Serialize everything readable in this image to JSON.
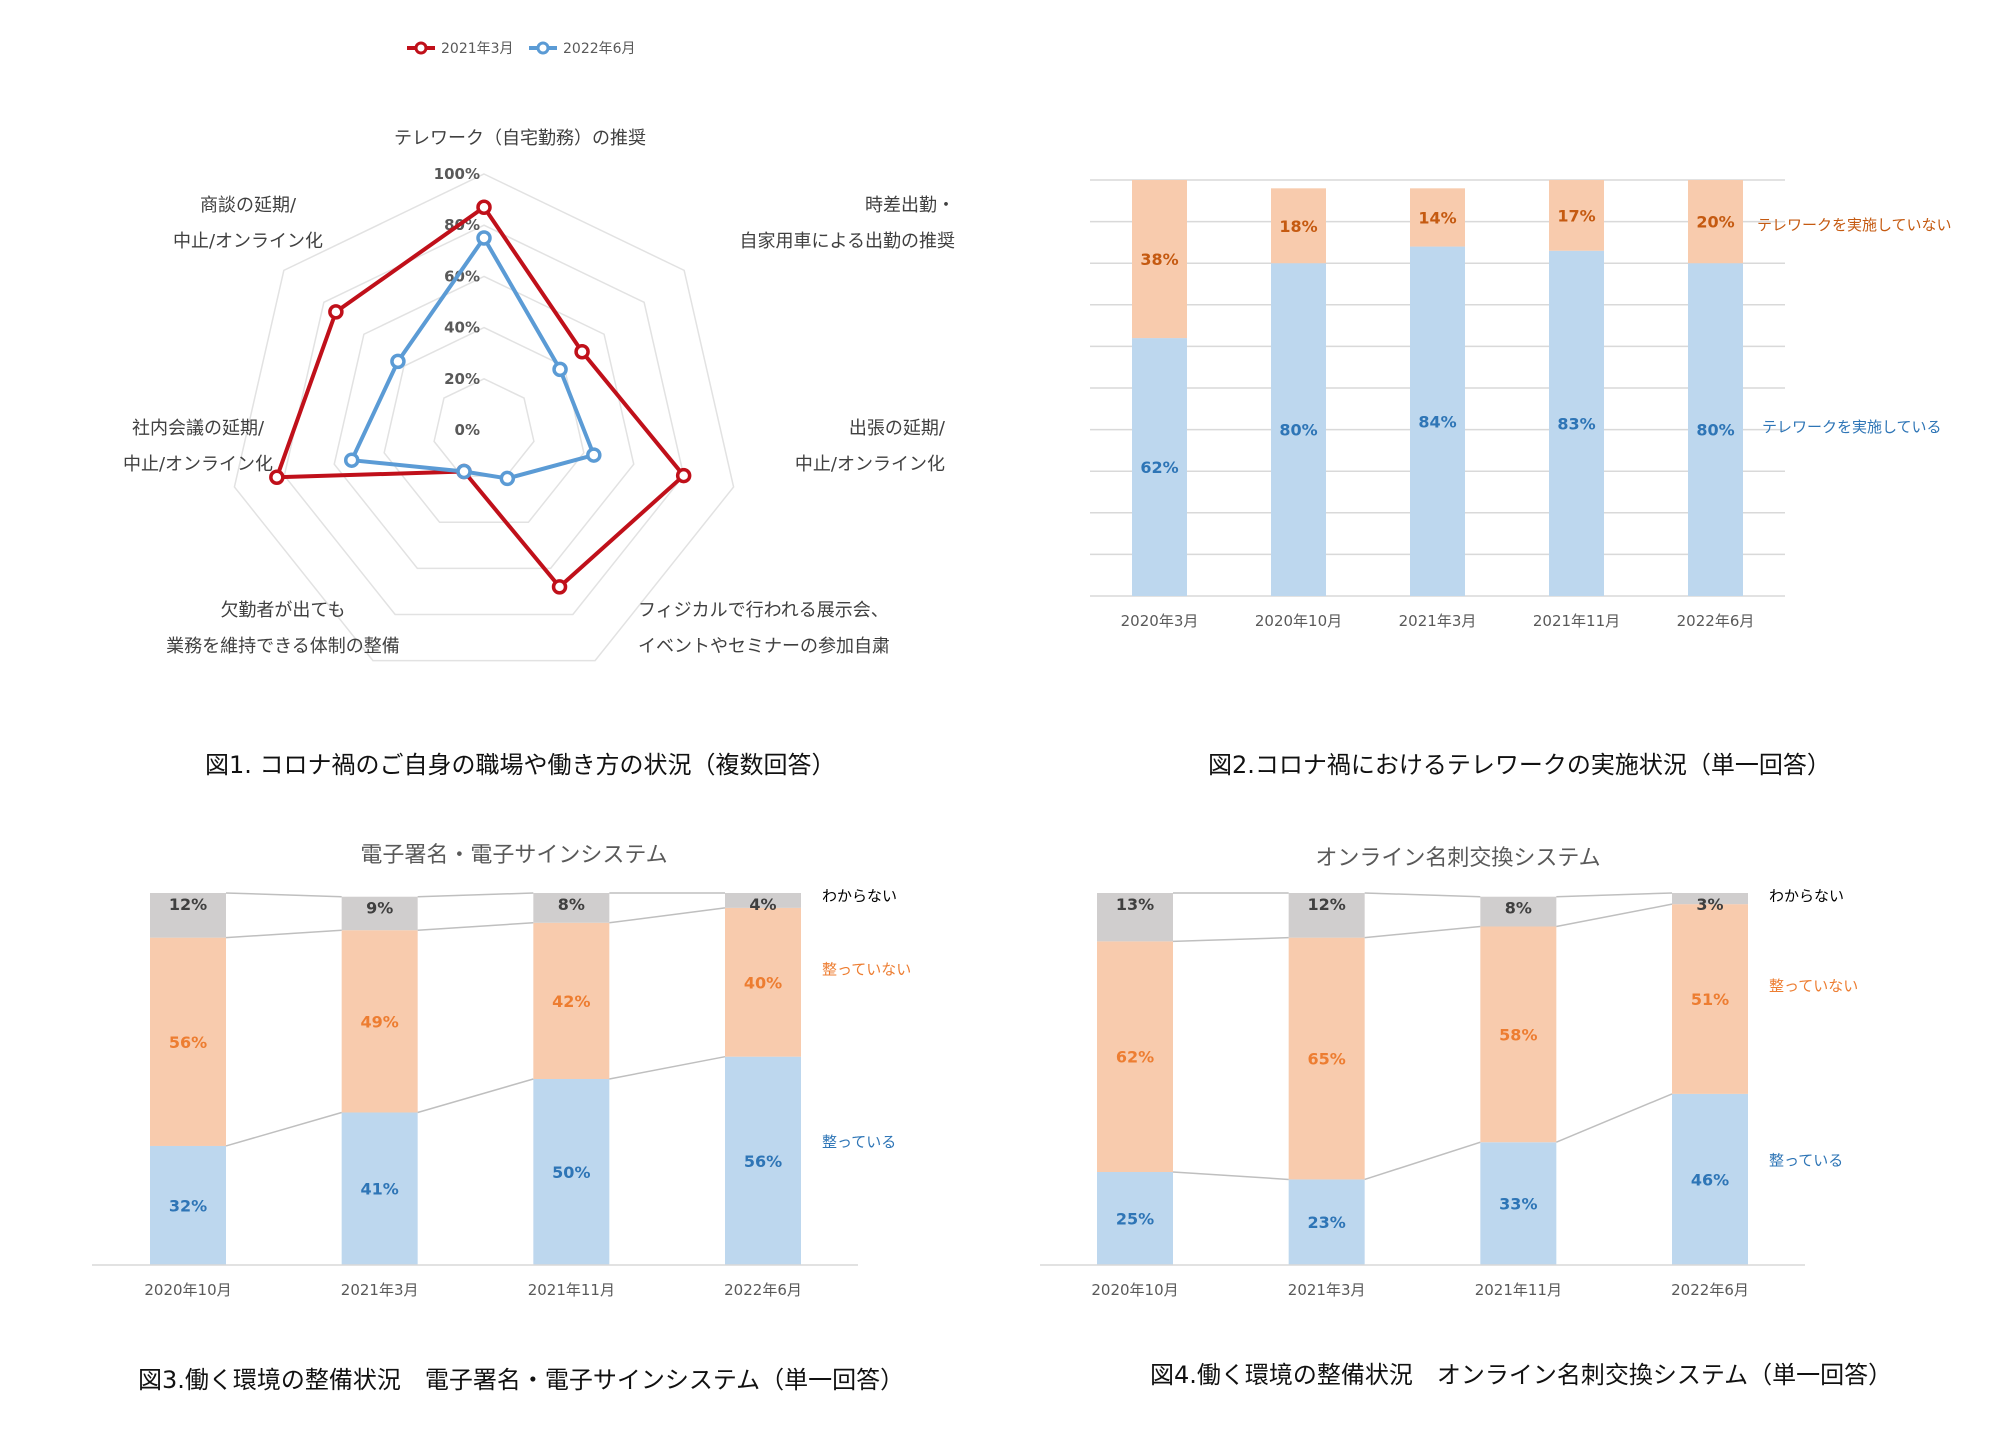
{
  "colors": {
    "red": "#c0101a",
    "blue": "#5b9bd5",
    "bar_blue": "#bdd7ee",
    "bar_orange": "#f8cbad",
    "bar_gray": "#d0cece",
    "text_blue": "#2e75b6",
    "text_orange": "#c55a11",
    "text_orange2": "#ed7d31",
    "grid": "#d9d9d9"
  },
  "captions": {
    "fig1": "図1. コロナ禍のご自身の職場や働き方の状況（複数回答）",
    "fig2": "図2.コロナ禍におけるテレワークの実施状況（単一回答）",
    "fig3": "図3.働く環境の整備状況　電子署名・電子サインシステム（単一回答）",
    "fig4": "図4.働く環境の整備状況　オンライン名刺交換システム（単一回答）"
  },
  "chart_data": [
    {
      "id": "fig1",
      "type": "radar",
      "title": "",
      "legend_position": "top-left",
      "axis_ticks": [
        "0%",
        "20%",
        "40%",
        "60%",
        "80%",
        "100%"
      ],
      "axis_range": [
        0,
        100
      ],
      "axes": [
        {
          "lines": [
            "テレワーク（自宅勤務）の推奨"
          ]
        },
        {
          "lines": [
            "時差出勤・",
            "自家用車による出勤の推奨"
          ]
        },
        {
          "lines": [
            "出張の延期/",
            "中止/オンライン化"
          ]
        },
        {
          "lines": [
            "フィジカルで行われる展示会、",
            "イベントやセミナーの参加自粛"
          ]
        },
        {
          "lines": [
            "欠勤者が出ても",
            "業務を維持できる体制の整備"
          ]
        },
        {
          "lines": [
            "社内会議の延期/",
            "中止/オンライン化"
          ]
        },
        {
          "lines": [
            "商談の延期/",
            "中止/オンライン化"
          ]
        }
      ],
      "series": [
        {
          "name": "2021年3月",
          "color": "#c0101a",
          "values": [
            87,
            49,
            80,
            68,
            18,
            83,
            74
          ]
        },
        {
          "name": "2022年6月",
          "color": "#5b9bd5",
          "values": [
            75,
            38,
            44,
            21,
            18,
            53,
            43
          ]
        }
      ]
    },
    {
      "id": "fig2",
      "type": "stacked_bar",
      "title": "",
      "categories": [
        "2020年3月",
        "2020年10月",
        "2021年3月",
        "2021年11月",
        "2022年6月"
      ],
      "ylim": [
        0,
        100
      ],
      "grid": true,
      "series": [
        {
          "name": "テレワークを実施している",
          "values": [
            62,
            80,
            84,
            83,
            80
          ],
          "labels": [
            "62%",
            "80%",
            "84%",
            "83%",
            "80%"
          ],
          "fill": "#bdd7ee",
          "text": "#2e75b6"
        },
        {
          "name": "テレワークを実施していない",
          "values": [
            38,
            18,
            14,
            17,
            20
          ],
          "labels": [
            "38%",
            "18%",
            "14%",
            "17%",
            "20%"
          ],
          "fill": "#f8cbad",
          "text": "#c55a11"
        }
      ]
    },
    {
      "id": "fig3",
      "type": "stacked_bar",
      "title": "電子署名・電子サインシステム",
      "categories": [
        "2020年10月",
        "2021年3月",
        "2021年11月",
        "2022年6月"
      ],
      "ylim": [
        0,
        100
      ],
      "grid": false,
      "series": [
        {
          "name": "整っている",
          "values": [
            32,
            41,
            50,
            56
          ],
          "labels": [
            "32%",
            "41%",
            "50%",
            "56%"
          ],
          "fill": "#bdd7ee",
          "text": "#2e75b6"
        },
        {
          "name": "整っていない",
          "values": [
            56,
            49,
            42,
            40
          ],
          "labels": [
            "56%",
            "49%",
            "42%",
            "40%"
          ],
          "fill": "#f8cbad",
          "text": "#ed7d31"
        },
        {
          "name": "わからない",
          "values": [
            12,
            9,
            8,
            4
          ],
          "labels": [
            "12%",
            "9%",
            "8%",
            "4%"
          ],
          "fill": "#d0cece",
          "text": "#404040"
        }
      ]
    },
    {
      "id": "fig4",
      "type": "stacked_bar",
      "title": "オンライン名刺交換システム",
      "categories": [
        "2020年10月",
        "2021年3月",
        "2021年11月",
        "2022年6月"
      ],
      "ylim": [
        0,
        100
      ],
      "grid": false,
      "series": [
        {
          "name": "整っている",
          "values": [
            25,
            23,
            33,
            46
          ],
          "labels": [
            "25%",
            "23%",
            "33%",
            "46%"
          ],
          "fill": "#bdd7ee",
          "text": "#2e75b6"
        },
        {
          "name": "整っていない",
          "values": [
            62,
            65,
            58,
            51
          ],
          "labels": [
            "62%",
            "65%",
            "58%",
            "51%"
          ],
          "fill": "#f8cbad",
          "text": "#ed7d31"
        },
        {
          "name": "わからない",
          "values": [
            13,
            12,
            8,
            3
          ],
          "labels": [
            "13%",
            "12%",
            "8%",
            "3%"
          ],
          "fill": "#d0cece",
          "text": "#404040"
        }
      ]
    }
  ]
}
